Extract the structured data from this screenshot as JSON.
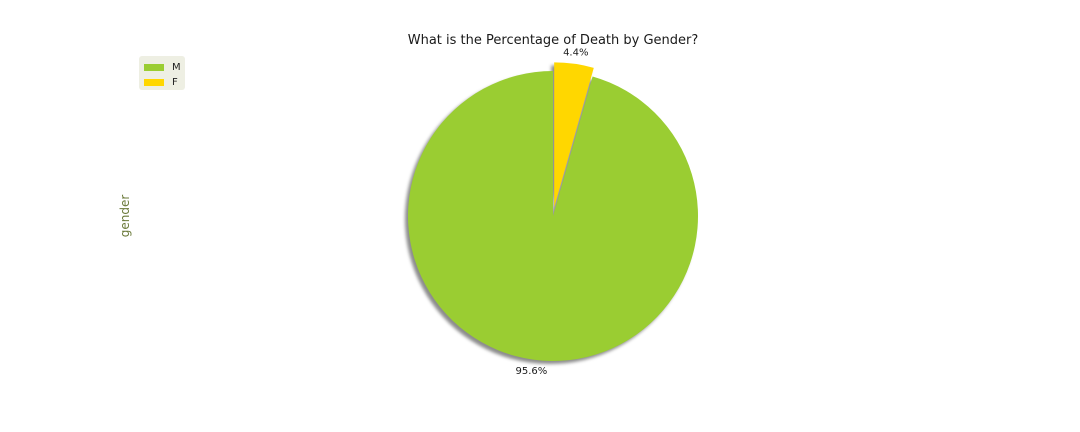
{
  "chart_data": {
    "type": "pie",
    "title": "What is the Percentage of Death by Gender?",
    "ylabel": "gender",
    "labels": [
      "M",
      "F"
    ],
    "values": [
      95.6,
      4.4
    ],
    "value_labels": [
      "95.6%",
      "4.4%"
    ],
    "colors": [
      "#9acd32",
      "#ffd700"
    ],
    "explode": [
      0,
      0.06
    ],
    "shadow": true,
    "start_angle_deg": 90,
    "legend_position": "top-left"
  }
}
